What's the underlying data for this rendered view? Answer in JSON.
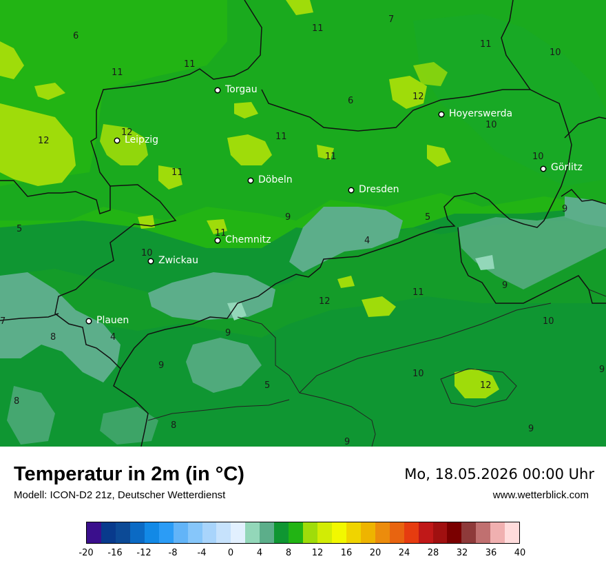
{
  "map": {
    "cities": [
      {
        "name": "Torgau"
      },
      {
        "name": "Leipzig"
      },
      {
        "name": "Hoyerswerda"
      },
      {
        "name": "Görlitz"
      },
      {
        "name": "Döbeln"
      },
      {
        "name": "Dresden"
      },
      {
        "name": "Chemnitz"
      },
      {
        "name": "Zwickau"
      },
      {
        "name": "Plauen"
      }
    ],
    "value_labels": [
      "6",
      "11",
      "11",
      "11",
      "7",
      "11",
      "10",
      "12",
      "6",
      "12",
      "10",
      "12",
      "11",
      "11",
      "10",
      "11",
      "5",
      "9",
      "5",
      "9",
      "4",
      "11",
      "10",
      "9",
      "11",
      "12",
      "7",
      "10",
      "8",
      "4",
      "9",
      "9",
      "9",
      "10",
      "5",
      "8",
      "12",
      "8",
      "9",
      "9"
    ]
  },
  "header": {
    "title": "Temperatur in 2m (in °C)",
    "subtitle": "Modell: ICON-D2 21z, Deutscher Wetterdienst",
    "datetime": "Mo, 18.05.2026 00:00 Uhr",
    "website": "www.wetterblick.com"
  },
  "legend": {
    "unit": "°C",
    "ticks": [
      "-20",
      "-16",
      "-12",
      "-8",
      "-4",
      "0",
      "4",
      "8",
      "12",
      "16",
      "20",
      "24",
      "28",
      "32",
      "36",
      "40"
    ],
    "colors": [
      "#3a0f8c",
      "#083a8c",
      "#0c4a96",
      "#0b6ac4",
      "#1289e6",
      "#2b9cf6",
      "#62b4f8",
      "#86c6fa",
      "#a8d4fb",
      "#c6e2fc",
      "#e2f0fe",
      "#93d7b9",
      "#5cae8a",
      "#0f9632",
      "#22b414",
      "#9fdc0a",
      "#d2ec05",
      "#f2f800",
      "#f0d400",
      "#eeb400",
      "#ec8c0c",
      "#e86410",
      "#e63c10",
      "#c01818",
      "#a01010",
      "#7a0000",
      "#8e3a3a",
      "#c07070",
      "#f0b0b0",
      "#ffdcdc"
    ]
  }
}
